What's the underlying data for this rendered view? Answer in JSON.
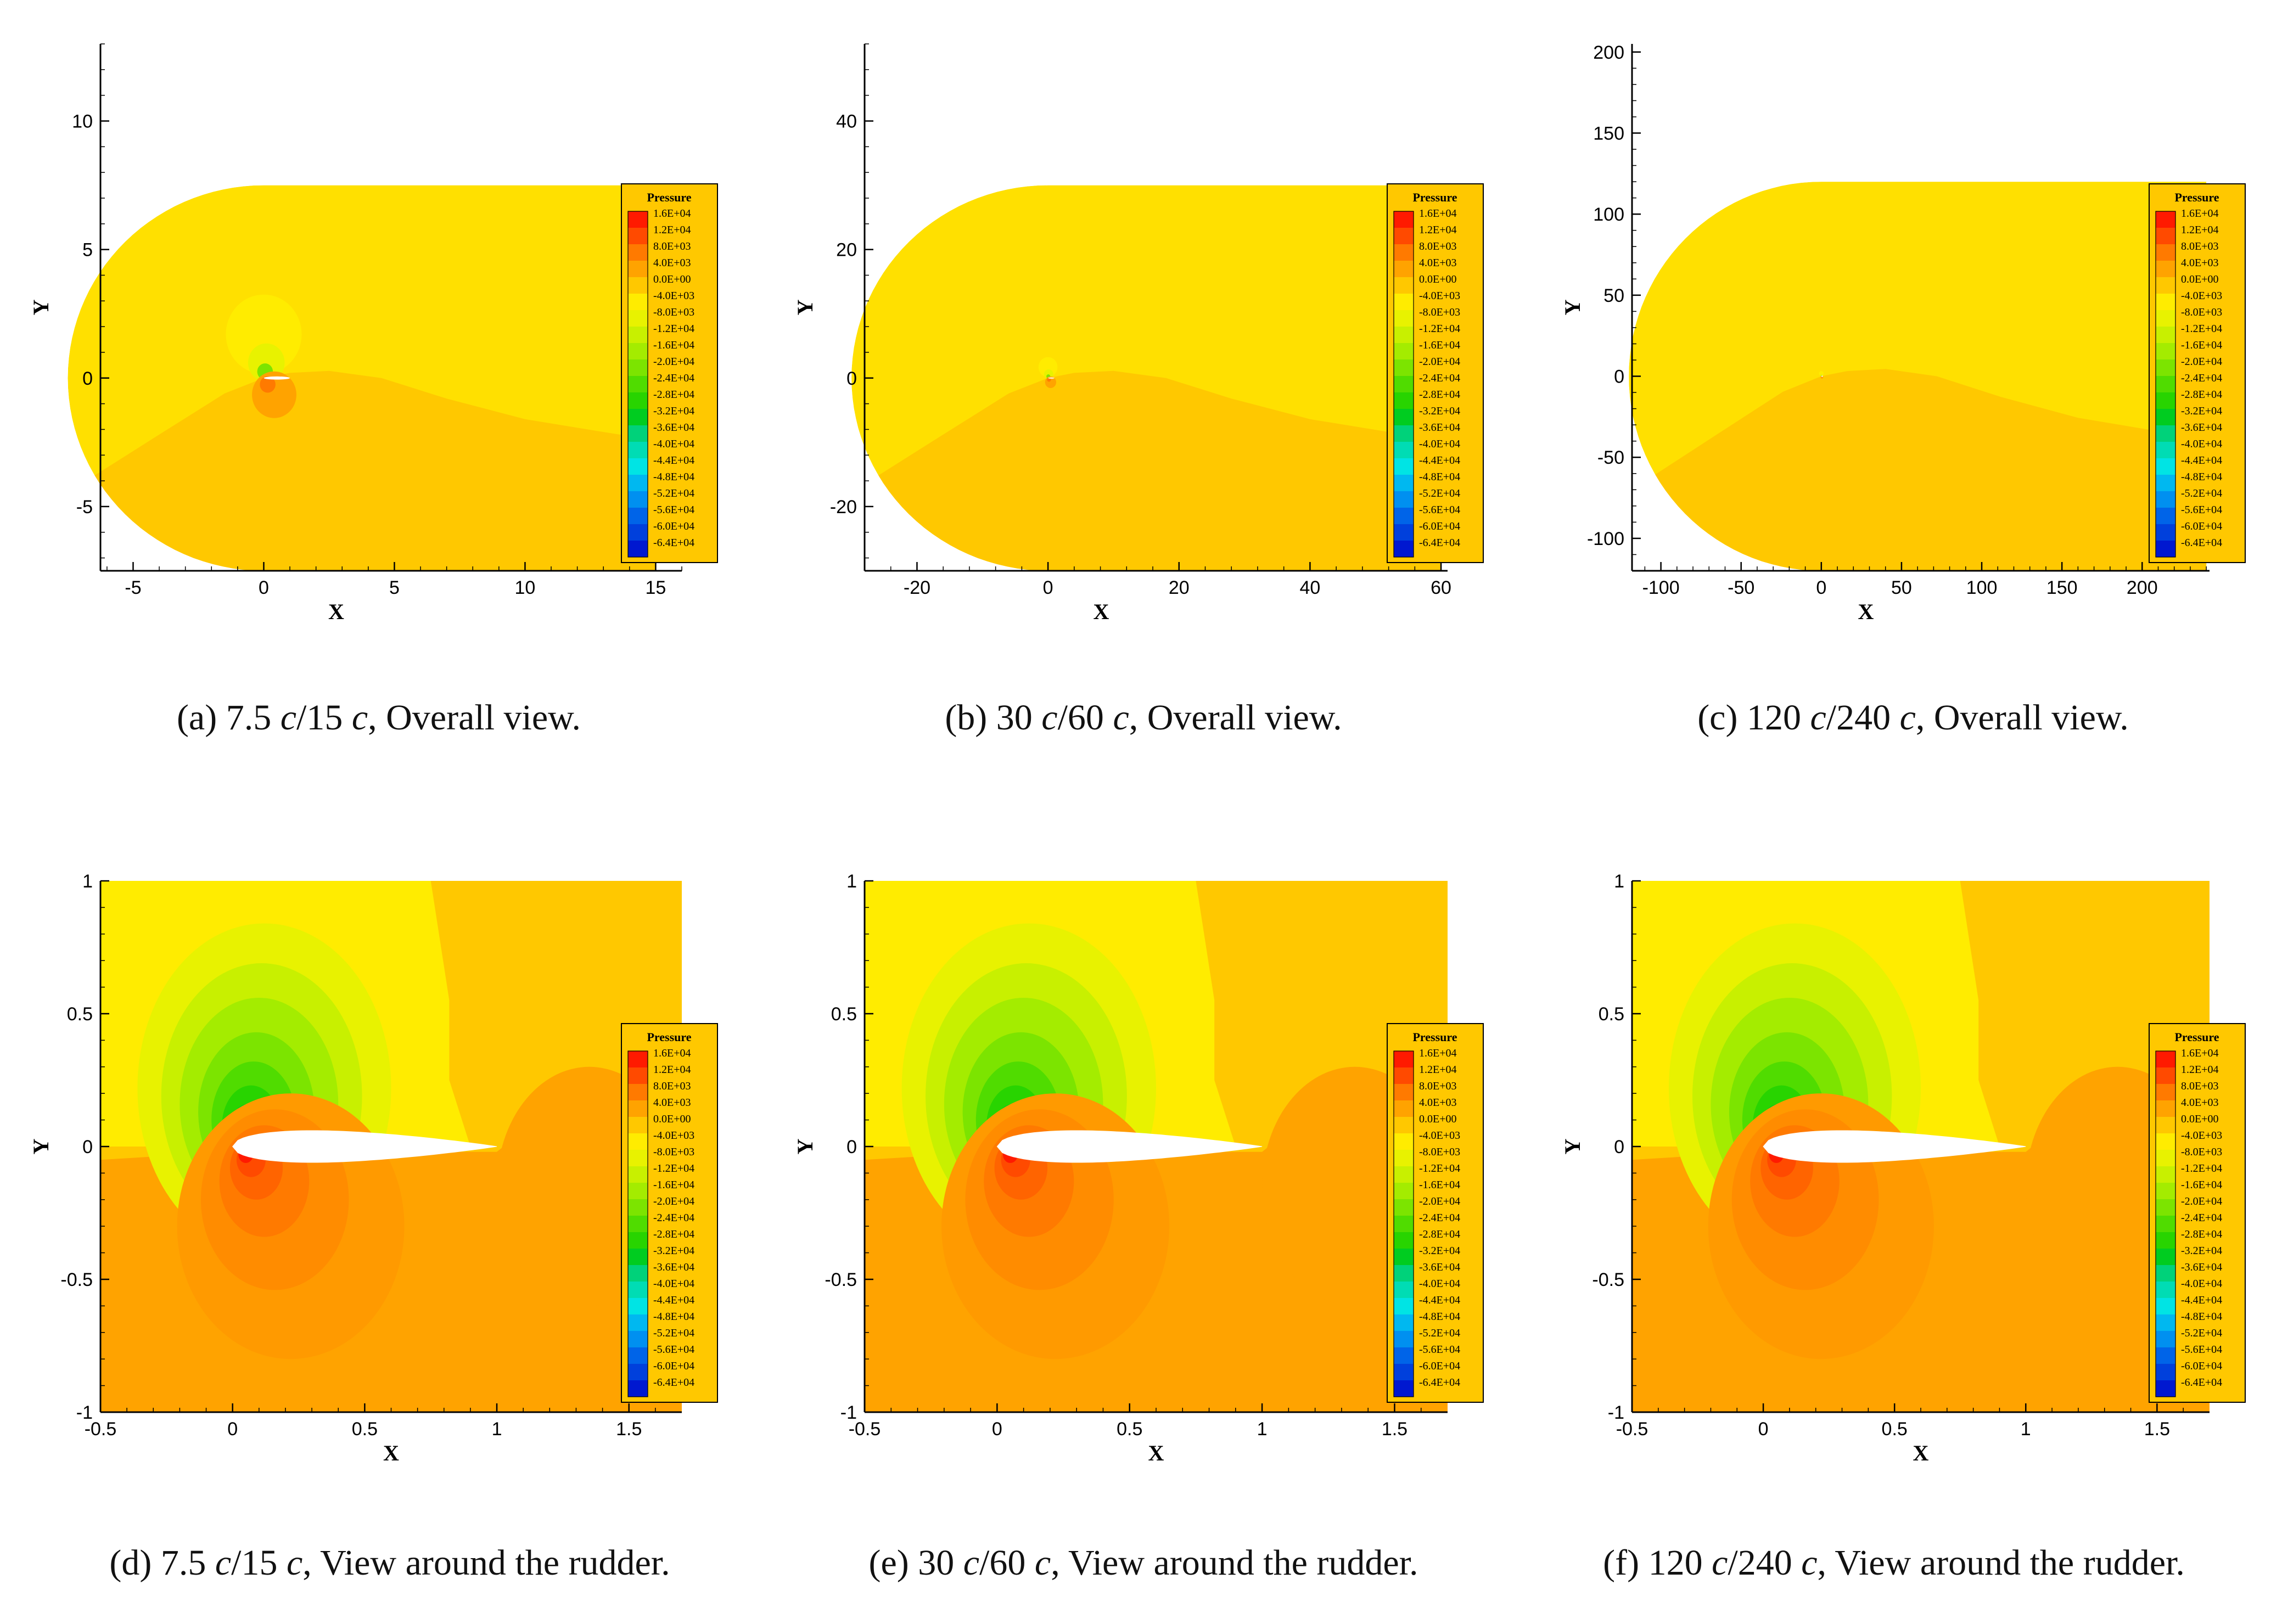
{
  "colors": {
    "background": "#ffffff",
    "axis": "#000000",
    "domain_upper": "#FFE000",
    "domain_lower": "#FFC800",
    "legend_box": "#FFC800"
  },
  "legend": {
    "title": "Pressure",
    "labels": [
      "1.6E+04",
      "1.2E+04",
      "8.0E+03",
      "4.0E+03",
      "0.0E+00",
      "-4.0E+03",
      "-8.0E+03",
      "-1.2E+04",
      "-1.6E+04",
      "-2.0E+04",
      "-2.4E+04",
      "-2.8E+04",
      "-3.2E+04",
      "-3.6E+04",
      "-4.0E+04",
      "-4.4E+04",
      "-4.8E+04",
      "-5.2E+04",
      "-5.6E+04",
      "-6.0E+04",
      "-6.4E+04"
    ],
    "colors": [
      "#FF1A00",
      "#FF4A00",
      "#FF7A00",
      "#FFA300",
      "#FFC800",
      "#FFEC00",
      "#E8F200",
      "#C8F000",
      "#A4EC00",
      "#7CE400",
      "#50DC00",
      "#28D400",
      "#00CC20",
      "#00D27A",
      "#00DCB4",
      "#00E4E4",
      "#00B8F0",
      "#0090F0",
      "#0064E8",
      "#0040DC",
      "#0018D0"
    ]
  },
  "chart_data": [
    {
      "panel": "a",
      "type": "heatmap",
      "variable": "Pressure",
      "view": "overall",
      "xlabel": "X",
      "ylabel": "Y",
      "xlim": [
        -6.25,
        16
      ],
      "ylim": [
        -7.5,
        13
      ],
      "xticks": [
        -5,
        0,
        5,
        10,
        15
      ],
      "yticks": [
        -5,
        0,
        5,
        10
      ],
      "xtick_labels": [
        "-5",
        "0",
        "5",
        "10",
        "15"
      ],
      "ytick_labels": [
        "-5",
        "0",
        "5",
        "10"
      ],
      "domain": {
        "front_radius": 7.5,
        "x_end": 15,
        "y_half": 7.5
      },
      "caption": {
        "prefix": "(a) 7.5 ",
        "c1": "c",
        "mid": "/15 ",
        "c2": "c",
        "suffix": ", Overall view."
      }
    },
    {
      "panel": "b",
      "type": "heatmap",
      "variable": "Pressure",
      "view": "overall",
      "xlabel": "X",
      "ylabel": "Y",
      "xlim": [
        -28,
        61
      ],
      "ylim": [
        -30,
        52
      ],
      "xticks": [
        -20,
        0,
        20,
        40,
        60
      ],
      "yticks": [
        -20,
        0,
        20,
        40
      ],
      "xtick_labels": [
        "-20",
        "0",
        "20",
        "40",
        "60"
      ],
      "ytick_labels": [
        "-20",
        "0",
        "20",
        "40"
      ],
      "domain": {
        "front_radius": 30,
        "x_end": 60,
        "y_half": 30
      },
      "caption": {
        "prefix": "(b) 30 ",
        "c1": "c",
        "mid": "/60 ",
        "c2": "c",
        "suffix": ", Overall view."
      }
    },
    {
      "panel": "c",
      "type": "heatmap",
      "variable": "Pressure",
      "view": "overall",
      "xlabel": "X",
      "ylabel": "Y",
      "xlim": [
        -118,
        242
      ],
      "ylim": [
        -120,
        205
      ],
      "xticks": [
        -100,
        -50,
        0,
        50,
        100,
        150,
        200
      ],
      "yticks": [
        -100,
        -50,
        0,
        50,
        100,
        150,
        200
      ],
      "xtick_labels": [
        "-100",
        "-50",
        "0",
        "50",
        "100",
        "150",
        "200"
      ],
      "ytick_labels": [
        "-100",
        "-50",
        "0",
        "50",
        "100",
        "150",
        "200"
      ],
      "domain": {
        "front_radius": 120,
        "x_end": 240,
        "y_half": 120
      },
      "caption": {
        "prefix": "(c) 120 ",
        "c1": "c",
        "mid": "/240 ",
        "c2": "c",
        "suffix": ", Overall view."
      }
    },
    {
      "panel": "d",
      "type": "heatmap",
      "variable": "Pressure",
      "view": "rudder",
      "xlabel": "X",
      "ylabel": "Y",
      "xlim": [
        -0.5,
        1.7
      ],
      "ylim": [
        -1,
        1
      ],
      "xticks": [
        -0.5,
        0,
        0.5,
        1,
        1.5
      ],
      "yticks": [
        -1,
        -0.5,
        0,
        0.5,
        1
      ],
      "xtick_labels": [
        "-0.5",
        "0",
        "0.5",
        "1",
        "1.5"
      ],
      "ytick_labels": [
        "-1",
        "-0.5",
        "0",
        "0.5",
        "1"
      ],
      "caption": {
        "prefix": "(d) 7.5 ",
        "c1": "c",
        "mid": "/15 ",
        "c2": "c",
        "suffix": ", View around the rudder."
      }
    },
    {
      "panel": "e",
      "type": "heatmap",
      "variable": "Pressure",
      "view": "rudder",
      "xlabel": "X",
      "ylabel": "Y",
      "xlim": [
        -0.5,
        1.7
      ],
      "ylim": [
        -1,
        1
      ],
      "xticks": [
        -0.5,
        0,
        0.5,
        1,
        1.5
      ],
      "yticks": [
        -1,
        -0.5,
        0,
        0.5,
        1
      ],
      "xtick_labels": [
        "-0.5",
        "0",
        "0.5",
        "1",
        "1.5"
      ],
      "ytick_labels": [
        "-1",
        "-0.5",
        "0",
        "0.5",
        "1"
      ],
      "caption": {
        "prefix": "(e) 30 ",
        "c1": "c",
        "mid": "/60 ",
        "c2": "c",
        "suffix": ", View around the rudder."
      }
    },
    {
      "panel": "f",
      "type": "heatmap",
      "variable": "Pressure",
      "view": "rudder",
      "xlabel": "X",
      "ylabel": "Y",
      "xlim": [
        -0.5,
        1.7
      ],
      "ylim": [
        -1,
        1
      ],
      "xticks": [
        -0.5,
        0,
        0.5,
        1,
        1.5
      ],
      "yticks": [
        -1,
        -0.5,
        0,
        0.5,
        1
      ],
      "xtick_labels": [
        "-0.5",
        "0",
        "0.5",
        "1",
        "1.5"
      ],
      "ytick_labels": [
        "-1",
        "-0.5",
        "0",
        "0.5",
        "1"
      ],
      "caption": {
        "prefix": "(f) 120 ",
        "c1": "c",
        "mid": "/240 ",
        "c2": "c",
        "suffix": ", View around the rudder."
      }
    }
  ]
}
